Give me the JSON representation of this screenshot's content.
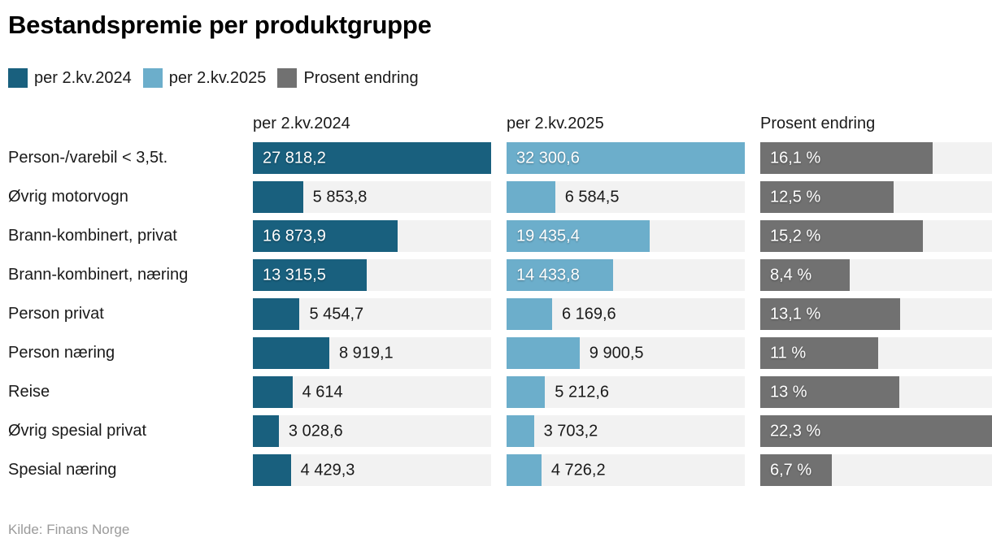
{
  "title": "Bestandspremie per produktgruppe",
  "legend": {
    "items": [
      {
        "label": "per 2.kv.2024",
        "color": "#19607E"
      },
      {
        "label": "per 2.kv.2025",
        "color": "#6CAECB"
      },
      {
        "label": "Prosent endring",
        "color": "#717171"
      }
    ]
  },
  "columns": {
    "header1": "per 2.kv.2024",
    "header2": "per 2.kv.2025",
    "header3": "Prosent endring"
  },
  "footer": {
    "source": "Kilde: Finans Norge"
  },
  "colors": {
    "series_2024": "#19607E",
    "series_2025": "#6CAECB",
    "series_percent": "#717171",
    "bar_track": "#F2F2F2",
    "text": "#1A1A1A",
    "title_text": "#000000",
    "source_text": "#9A9A9A",
    "inside_label_text": "#FFFFFF"
  },
  "chart_data": {
    "type": "bar",
    "orientation": "horizontal",
    "layout": "split bars: three side-by-side bar columns, each column scaled to its own maximum value; light gray track behind each bar; grid off; legend at top",
    "title": "Bestandspremie per produktgruppe",
    "source": "Kilde: Finans Norge",
    "categories": [
      "Person-/varebil < 3,5t.",
      "Øvrig motorvogn",
      "Brann-kombinert, privat",
      "Brann-kombinert, næring",
      "Person privat",
      "Person næring",
      "Reise",
      "Øvrig spesial privat",
      "Spesial næring"
    ],
    "series": [
      {
        "name": "per 2.kv.2024",
        "color": "#19607E",
        "axis_range": [
          0,
          27818.2
        ],
        "values": [
          27818.2,
          5853.8,
          16873.9,
          13315.5,
          5454.7,
          8919.1,
          4614,
          3028.6,
          4429.3
        ],
        "display": [
          "27 818,2",
          "5 853,8",
          "16 873,9",
          "13 315,5",
          "5 454,7",
          "8 919,1",
          "4 614",
          "3 028,6",
          "4 429,3"
        ]
      },
      {
        "name": "per 2.kv.2025",
        "color": "#6CAECB",
        "axis_range": [
          0,
          32300.6
        ],
        "values": [
          32300.6,
          6584.5,
          19435.4,
          14433.8,
          6169.6,
          9900.5,
          5212.6,
          3703.2,
          4726.2
        ],
        "display": [
          "32 300,6",
          "6 584,5",
          "19 435,4",
          "14 433,8",
          "6 169,6",
          "9 900,5",
          "5 212,6",
          "3 703,2",
          "4 726,2"
        ]
      },
      {
        "name": "Prosent endring",
        "color": "#717171",
        "axis_range": [
          0,
          22.3
        ],
        "values": [
          16.1,
          12.5,
          15.2,
          8.4,
          13.1,
          11,
          13,
          22.3,
          6.7
        ],
        "display": [
          "16,1 %",
          "12,5 %",
          "15,2 %",
          "8,4 %",
          "13,1 %",
          "11 %",
          "13 %",
          "22,3 %",
          "6,7 %"
        ]
      }
    ]
  }
}
